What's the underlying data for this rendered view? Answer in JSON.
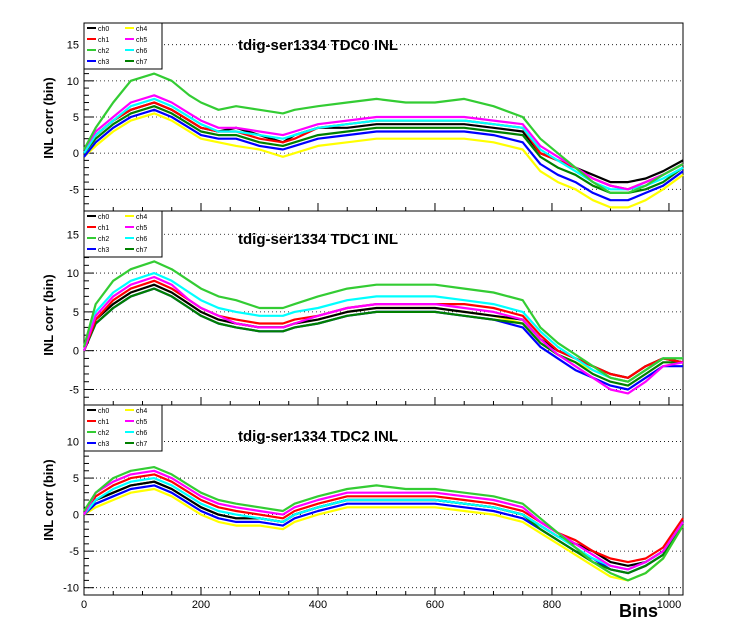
{
  "figure": {
    "xlabel": "Bins",
    "x_ticks": [
      "0",
      "200",
      "400",
      "600",
      "800",
      "1000"
    ]
  },
  "legend_labels": [
    "ch0",
    "ch1",
    "ch2",
    "ch3",
    "ch4",
    "ch5",
    "ch6",
    "ch7"
  ],
  "colors": {
    "ch0": "#000000",
    "ch1": "#ff0000",
    "ch2": "#33cc33",
    "ch3": "#0000ff",
    "ch4": "#ffff00",
    "ch5": "#ff00ff",
    "ch6": "#00ffff",
    "ch7": "#008000"
  },
  "chart_data": [
    {
      "type": "line",
      "title": "tdig-ser1334 TDC0 INL",
      "ylabel": "INL corr (bin)",
      "xlim": [
        0,
        1024
      ],
      "ylim": [
        -8,
        18
      ],
      "y_ticks": [
        "-5",
        "0",
        "5",
        "10",
        "15"
      ],
      "x": [
        0,
        20,
        50,
        80,
        120,
        150,
        180,
        200,
        230,
        260,
        300,
        340,
        360,
        400,
        450,
        500,
        550,
        600,
        650,
        700,
        750,
        780,
        810,
        840,
        870,
        900,
        930,
        960,
        990,
        1024
      ],
      "series": [
        {
          "name": "ch0",
          "values": [
            0,
            2.5,
            4.5,
            6,
            7,
            6,
            4.5,
            3.5,
            3,
            3.5,
            2.5,
            1.5,
            2.5,
            3.5,
            3.5,
            4,
            4,
            4,
            4,
            3.5,
            3,
            0,
            -1,
            -2,
            -3,
            -4,
            -4,
            -3.5,
            -2.5,
            -1
          ]
        },
        {
          "name": "ch1",
          "values": [
            0,
            2.5,
            4.5,
            6,
            7,
            6,
            4.5,
            3.5,
            3,
            3,
            2,
            1.5,
            2,
            3.5,
            4,
            4.5,
            4.5,
            4.5,
            4.5,
            4,
            3.5,
            0,
            -1,
            -2,
            -3.5,
            -4.5,
            -5,
            -4,
            -3,
            -1.5
          ]
        },
        {
          "name": "ch2",
          "values": [
            0.5,
            3.5,
            7,
            10,
            11,
            10,
            8,
            7,
            6,
            6.5,
            6,
            5.5,
            6,
            6.5,
            7,
            7.5,
            7,
            7,
            7.5,
            6.5,
            5,
            2,
            0,
            -2,
            -4,
            -5.5,
            -5.5,
            -4.5,
            -3,
            -1.5
          ]
        },
        {
          "name": "ch3",
          "values": [
            -0.5,
            1.5,
            3.5,
            5,
            6,
            5,
            3.5,
            2.5,
            2,
            2,
            1,
            0.5,
            1,
            2,
            2.5,
            3,
            3,
            3,
            3,
            2.5,
            1.5,
            -1.5,
            -3,
            -4,
            -5.5,
            -6.5,
            -6.5,
            -5.5,
            -4.5,
            -2.5
          ]
        },
        {
          "name": "ch4",
          "values": [
            -0.5,
            1,
            3,
            4.5,
            5.5,
            4.5,
            3,
            2,
            1.5,
            1,
            0.5,
            -0.5,
            0,
            1,
            1.5,
            2,
            2,
            2,
            2,
            1.5,
            0.5,
            -2.5,
            -4,
            -5,
            -6.5,
            -7.5,
            -7.5,
            -6.5,
            -5,
            -3
          ]
        },
        {
          "name": "ch5",
          "values": [
            0.5,
            3,
            5,
            7,
            8,
            7,
            5.5,
            4.5,
            3.5,
            3.5,
            3,
            2.5,
            3,
            4,
            4.5,
            5,
            5,
            5,
            5,
            4.5,
            4,
            1,
            -0.5,
            -2,
            -3.5,
            -4.5,
            -5,
            -4,
            -3,
            -1.5
          ]
        },
        {
          "name": "ch6",
          "values": [
            0,
            2.5,
            4.5,
            6.5,
            7.5,
            6.5,
            5,
            4,
            3,
            3,
            2.5,
            2,
            2.5,
            3.5,
            4,
            4.5,
            4.5,
            4.5,
            4.5,
            4,
            3.5,
            0.5,
            -1,
            -2.5,
            -4,
            -5,
            -5,
            -4.5,
            -3.5,
            -2
          ]
        },
        {
          "name": "ch7",
          "values": [
            0,
            2,
            4,
            5.5,
            6.5,
            5.5,
            4,
            3,
            2.5,
            2.5,
            1.5,
            1,
            1.5,
            2.5,
            3,
            3.5,
            3.5,
            3.5,
            3.5,
            3,
            2.5,
            -0.5,
            -2,
            -3,
            -4.5,
            -5.5,
            -5.5,
            -5,
            -4,
            -2
          ]
        }
      ]
    },
    {
      "type": "line",
      "title": "tdig-ser1334 TDC1 INL",
      "ylabel": "INL corr (bin)",
      "xlim": [
        0,
        1024
      ],
      "ylim": [
        -7,
        18
      ],
      "y_ticks": [
        "-5",
        "0",
        "5",
        "10",
        "15"
      ],
      "x": [
        0,
        20,
        50,
        80,
        120,
        150,
        180,
        200,
        230,
        260,
        300,
        340,
        360,
        400,
        450,
        500,
        550,
        600,
        650,
        700,
        750,
        780,
        810,
        840,
        870,
        900,
        930,
        960,
        990,
        1024
      ],
      "series": [
        {
          "name": "ch0",
          "values": [
            0,
            4,
            6,
            7.5,
            8.5,
            7.5,
            6,
            5,
            4,
            3.5,
            3,
            3,
            3.5,
            4,
            5,
            5.5,
            5.5,
            5.5,
            5,
            4.5,
            4,
            1.5,
            0,
            -1,
            -2,
            -3,
            -3.5,
            -2,
            -1,
            -1.5
          ]
        },
        {
          "name": "ch1",
          "values": [
            0,
            4,
            6.5,
            8,
            9,
            8,
            6.5,
            5.5,
            4.5,
            4,
            3.5,
            3.5,
            4,
            4.5,
            5.5,
            6,
            6,
            6,
            6,
            5.5,
            4.5,
            2,
            0,
            -1,
            -2,
            -3,
            -3.5,
            -2,
            -1,
            -1.5
          ]
        },
        {
          "name": "ch2",
          "values": [
            0.5,
            6,
            9,
            10.5,
            11.5,
            10.5,
            9,
            8,
            7,
            6.5,
            5.5,
            5.5,
            6,
            7,
            8,
            8.5,
            8.5,
            8.5,
            8,
            7.5,
            6.5,
            3,
            1,
            -0.5,
            -2,
            -3.5,
            -4,
            -2.5,
            -1,
            -1
          ]
        },
        {
          "name": "ch3",
          "values": [
            0,
            3.5,
            5.5,
            7,
            8,
            7,
            5.5,
            4.5,
            3.5,
            3,
            2.5,
            2.5,
            3,
            3.5,
            4.5,
            5,
            5,
            5,
            4.5,
            4,
            3,
            0.5,
            -1,
            -2.5,
            -3.5,
            -4.5,
            -5,
            -3.5,
            -2,
            -2
          ]
        },
        {
          "name": "ch4",
          "values": [
            0,
            4,
            6,
            7.5,
            8.5,
            7.5,
            6,
            5,
            4,
            3.5,
            3,
            3,
            3.5,
            4,
            5,
            5.5,
            5.5,
            5.5,
            5,
            4.5,
            3.5,
            1,
            -0.5,
            -1.5,
            -2.5,
            -3.5,
            -4,
            -2.5,
            -1,
            -1
          ]
        },
        {
          "name": "ch5",
          "values": [
            0,
            4.5,
            7,
            8.5,
            9.5,
            8.5,
            6.5,
            5.5,
            4.5,
            3.5,
            3,
            3,
            3.5,
            4.5,
            5.5,
            6,
            6,
            6,
            5.5,
            5,
            4,
            1.5,
            -0.5,
            -2,
            -3.5,
            -5,
            -5.5,
            -4,
            -2,
            -1.5
          ]
        },
        {
          "name": "ch6",
          "values": [
            0,
            5,
            7.5,
            9,
            10,
            9,
            7.5,
            6.5,
            5.5,
            5,
            4.5,
            4.5,
            5,
            5.5,
            6.5,
            7,
            7,
            7,
            6.5,
            6,
            5,
            2.5,
            0.5,
            -1,
            -2.5,
            -3.5,
            -4,
            -2.5,
            -1,
            -1
          ]
        },
        {
          "name": "ch7",
          "values": [
            0,
            3.5,
            5.5,
            7,
            8,
            7,
            5.5,
            4.5,
            3.5,
            3,
            2.5,
            2.5,
            3,
            3.5,
            4.5,
            5,
            5,
            5,
            4.5,
            4,
            3.5,
            1,
            -0.5,
            -1.5,
            -3,
            -4,
            -4.5,
            -3,
            -1.5,
            -1.5
          ]
        }
      ]
    },
    {
      "type": "line",
      "title": "tdig-ser1334 TDC2 INL",
      "ylabel": "INL corr (bin)",
      "xlim": [
        0,
        1024
      ],
      "ylim": [
        -11,
        15
      ],
      "y_ticks": [
        "-10",
        "-5",
        "0",
        "5",
        "10"
      ],
      "x": [
        0,
        20,
        50,
        80,
        120,
        150,
        180,
        200,
        230,
        260,
        300,
        340,
        360,
        400,
        450,
        500,
        550,
        600,
        650,
        700,
        750,
        780,
        810,
        840,
        870,
        900,
        930,
        960,
        990,
        1024
      ],
      "series": [
        {
          "name": "ch0",
          "values": [
            0,
            2,
            3,
            4,
            4.5,
            3.5,
            2,
            1,
            0,
            -0.5,
            -0.5,
            -1,
            0,
            1,
            2,
            2,
            2,
            2,
            1.5,
            1,
            0,
            -1.5,
            -3,
            -4,
            -5,
            -6.5,
            -7,
            -6.5,
            -5,
            -1
          ]
        },
        {
          "name": "ch1",
          "values": [
            0,
            2.5,
            4,
            5,
            5.5,
            4.5,
            3,
            2,
            1,
            0.5,
            0,
            -0.5,
            0.5,
            1.5,
            2.5,
            2.5,
            2.5,
            2.5,
            2,
            1.5,
            0.5,
            -1,
            -2.5,
            -3.5,
            -5,
            -6,
            -6.5,
            -6,
            -4.5,
            -0.5
          ]
        },
        {
          "name": "ch2",
          "values": [
            0.5,
            3,
            5,
            6,
            6.5,
            5.5,
            4,
            3,
            2,
            1.5,
            1,
            0.5,
            1.5,
            2.5,
            3.5,
            4,
            3.5,
            3.5,
            3,
            2.5,
            1.5,
            -0.5,
            -2.5,
            -4.5,
            -6.5,
            -8,
            -9,
            -8,
            -6,
            -1.5
          ]
        },
        {
          "name": "ch3",
          "values": [
            0,
            1.5,
            2.5,
            3.5,
            4,
            3,
            1.5,
            0.5,
            -0.5,
            -1,
            -1,
            -1.5,
            -0.5,
            0.5,
            1.5,
            1.5,
            1.5,
            1.5,
            1,
            0.5,
            -0.5,
            -2,
            -3.5,
            -5,
            -6,
            -7.5,
            -8,
            -7,
            -5.5,
            -1
          ]
        },
        {
          "name": "ch4",
          "values": [
            0,
            1,
            2,
            3,
            3.5,
            2.5,
            1,
            0,
            -1,
            -1.5,
            -1.5,
            -2,
            -1,
            0,
            1,
            1,
            1,
            1,
            0.5,
            0,
            -1,
            -2.5,
            -4,
            -5.5,
            -7,
            -8.5,
            -9,
            -8,
            -6,
            -1.5
          ]
        },
        {
          "name": "ch5",
          "values": [
            0,
            3,
            4.5,
            5.5,
            6,
            5,
            3.5,
            2.5,
            1.5,
            1,
            0.5,
            0,
            1,
            2,
            3,
            3,
            3,
            3,
            2.5,
            2,
            1,
            -1,
            -2.5,
            -4,
            -5.5,
            -7,
            -7.5,
            -6.5,
            -5,
            -1
          ]
        },
        {
          "name": "ch6",
          "values": [
            0,
            2,
            3.5,
            4.5,
            5,
            4,
            2.5,
            1.5,
            0.5,
            0,
            -0.5,
            -1,
            0,
            1,
            2,
            2,
            2,
            2,
            1.5,
            1,
            0,
            -1.5,
            -3,
            -4.5,
            -6,
            -7,
            -7.5,
            -6.5,
            -5,
            -1
          ]
        },
        {
          "name": "ch7",
          "values": [
            0,
            2,
            3,
            4,
            4.5,
            3.5,
            2,
            1,
            0,
            -0.5,
            -0.5,
            -1,
            0,
            1,
            2,
            2,
            2,
            2,
            1.5,
            1,
            0,
            -2,
            -3.5,
            -5,
            -6.5,
            -7.5,
            -8,
            -7,
            -5.5,
            -1
          ]
        }
      ]
    }
  ]
}
